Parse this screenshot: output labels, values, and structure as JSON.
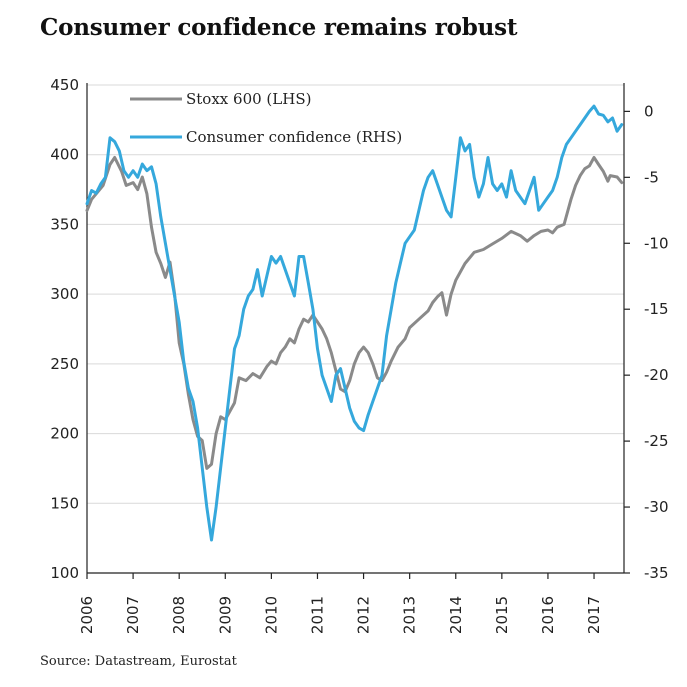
{
  "title": "Consumer confidence remains robust",
  "source": "Source:  Datastream,  Eurostat",
  "colors": {
    "stoxx": "#8a8a8a",
    "confidence": "#35a8dc",
    "grid": "#d9d9d9",
    "axis": "#222222"
  },
  "chart_data": {
    "type": "line",
    "title": "Consumer confidence remains robust",
    "x_ticks": [
      "2006",
      "2007",
      "2008",
      "2009",
      "2010",
      "2011",
      "2012",
      "2013",
      "2014",
      "2015",
      "2016",
      "2017"
    ],
    "x_range": [
      2006.0,
      2017.65
    ],
    "y_left": {
      "range": [
        100,
        450
      ],
      "ticks": [
        100,
        150,
        200,
        250,
        300,
        350,
        400,
        450
      ]
    },
    "y_right": {
      "range": [
        -35,
        2
      ],
      "ticks": [
        0,
        -5,
        -10,
        -15,
        -20,
        -25,
        -30,
        -35
      ]
    },
    "grid": true,
    "legend": "top-left",
    "series": [
      {
        "name": "Stoxx 600 (LHS)",
        "axis": "left",
        "points": [
          [
            2006.0,
            360
          ],
          [
            2006.1,
            368
          ],
          [
            2006.2,
            372
          ],
          [
            2006.35,
            378
          ],
          [
            2006.5,
            393
          ],
          [
            2006.6,
            398
          ],
          [
            2006.75,
            388
          ],
          [
            2006.85,
            378
          ],
          [
            2007.0,
            380
          ],
          [
            2007.1,
            375
          ],
          [
            2007.2,
            384
          ],
          [
            2007.3,
            372
          ],
          [
            2007.4,
            348
          ],
          [
            2007.5,
            330
          ],
          [
            2007.6,
            322
          ],
          [
            2007.7,
            312
          ],
          [
            2007.8,
            323
          ],
          [
            2007.9,
            300
          ],
          [
            2008.0,
            265
          ],
          [
            2008.1,
            250
          ],
          [
            2008.2,
            228
          ],
          [
            2008.3,
            210
          ],
          [
            2008.4,
            198
          ],
          [
            2008.5,
            195
          ],
          [
            2008.6,
            175
          ],
          [
            2008.7,
            178
          ],
          [
            2008.8,
            200
          ],
          [
            2008.9,
            212
          ],
          [
            2009.0,
            210
          ],
          [
            2009.2,
            222
          ],
          [
            2009.3,
            240
          ],
          [
            2009.45,
            238
          ],
          [
            2009.6,
            243
          ],
          [
            2009.75,
            240
          ],
          [
            2009.9,
            248
          ],
          [
            2010.0,
            252
          ],
          [
            2010.1,
            250
          ],
          [
            2010.2,
            258
          ],
          [
            2010.3,
            262
          ],
          [
            2010.4,
            268
          ],
          [
            2010.5,
            265
          ],
          [
            2010.6,
            275
          ],
          [
            2010.7,
            282
          ],
          [
            2010.8,
            280
          ],
          [
            2010.9,
            285
          ],
          [
            2011.0,
            280
          ],
          [
            2011.1,
            275
          ],
          [
            2011.2,
            268
          ],
          [
            2011.3,
            258
          ],
          [
            2011.4,
            245
          ],
          [
            2011.5,
            232
          ],
          [
            2011.6,
            230
          ],
          [
            2011.7,
            238
          ],
          [
            2011.8,
            250
          ],
          [
            2011.9,
            258
          ],
          [
            2012.0,
            262
          ],
          [
            2012.1,
            258
          ],
          [
            2012.2,
            250
          ],
          [
            2012.3,
            240
          ],
          [
            2012.4,
            238
          ],
          [
            2012.5,
            244
          ],
          [
            2012.6,
            252
          ],
          [
            2012.75,
            262
          ],
          [
            2012.9,
            268
          ],
          [
            2013.0,
            276
          ],
          [
            2013.2,
            282
          ],
          [
            2013.4,
            288
          ],
          [
            2013.5,
            294
          ],
          [
            2013.6,
            298
          ],
          [
            2013.7,
            301
          ],
          [
            2013.8,
            285
          ],
          [
            2013.9,
            300
          ],
          [
            2014.0,
            310
          ],
          [
            2014.2,
            322
          ],
          [
            2014.4,
            330
          ],
          [
            2014.6,
            332
          ],
          [
            2014.8,
            336
          ],
          [
            2015.0,
            340
          ],
          [
            2015.2,
            345
          ],
          [
            2015.4,
            342
          ],
          [
            2015.55,
            338
          ],
          [
            2015.7,
            342
          ],
          [
            2015.85,
            345
          ],
          [
            2016.0,
            346
          ],
          [
            2016.1,
            344
          ],
          [
            2016.2,
            348
          ],
          [
            2016.35,
            350
          ],
          [
            2016.5,
            368
          ],
          [
            2016.6,
            378
          ],
          [
            2016.7,
            385
          ],
          [
            2016.8,
            390
          ],
          [
            2016.9,
            392
          ],
          [
            2017.0,
            398
          ],
          [
            2017.1,
            393
          ],
          [
            2017.2,
            388
          ],
          [
            2017.3,
            381
          ],
          [
            2017.35,
            385
          ],
          [
            2017.5,
            384
          ],
          [
            2017.6,
            380
          ]
        ]
      },
      {
        "name": "Consumer confidence (RHS)",
        "axis": "right",
        "points": [
          [
            2006.0,
            -7.0
          ],
          [
            2006.1,
            -6.0
          ],
          [
            2006.2,
            -6.2
          ],
          [
            2006.3,
            -5.5
          ],
          [
            2006.4,
            -5.0
          ],
          [
            2006.5,
            -2.0
          ],
          [
            2006.6,
            -2.3
          ],
          [
            2006.7,
            -3.0
          ],
          [
            2006.8,
            -4.5
          ],
          [
            2006.9,
            -5.0
          ],
          [
            2007.0,
            -4.5
          ],
          [
            2007.1,
            -5.0
          ],
          [
            2007.2,
            -4.0
          ],
          [
            2007.3,
            -4.5
          ],
          [
            2007.4,
            -4.2
          ],
          [
            2007.5,
            -5.5
          ],
          [
            2007.6,
            -8.0
          ],
          [
            2007.7,
            -10.0
          ],
          [
            2007.8,
            -12.0
          ],
          [
            2007.9,
            -14.0
          ],
          [
            2008.0,
            -16.0
          ],
          [
            2008.1,
            -19.0
          ],
          [
            2008.2,
            -21.0
          ],
          [
            2008.3,
            -22.0
          ],
          [
            2008.4,
            -24.0
          ],
          [
            2008.5,
            -27.0
          ],
          [
            2008.6,
            -30.0
          ],
          [
            2008.7,
            -32.5
          ],
          [
            2008.8,
            -30.0
          ],
          [
            2008.9,
            -27.0
          ],
          [
            2009.0,
            -24.0
          ],
          [
            2009.1,
            -21.0
          ],
          [
            2009.2,
            -18.0
          ],
          [
            2009.3,
            -17.0
          ],
          [
            2009.4,
            -15.0
          ],
          [
            2009.5,
            -14.0
          ],
          [
            2009.6,
            -13.5
          ],
          [
            2009.7,
            -12.0
          ],
          [
            2009.8,
            -14.0
          ],
          [
            2009.9,
            -12.5
          ],
          [
            2010.0,
            -11.0
          ],
          [
            2010.1,
            -11.5
          ],
          [
            2010.2,
            -11.0
          ],
          [
            2010.3,
            -12.0
          ],
          [
            2010.4,
            -13.0
          ],
          [
            2010.5,
            -14.0
          ],
          [
            2010.6,
            -11.0
          ],
          [
            2010.7,
            -11.0
          ],
          [
            2010.8,
            -13.0
          ],
          [
            2010.9,
            -15.0
          ],
          [
            2011.0,
            -18.0
          ],
          [
            2011.1,
            -20.0
          ],
          [
            2011.2,
            -21.0
          ],
          [
            2011.3,
            -22.0
          ],
          [
            2011.4,
            -20.0
          ],
          [
            2011.5,
            -19.5
          ],
          [
            2011.6,
            -21.0
          ],
          [
            2011.7,
            -22.5
          ],
          [
            2011.8,
            -23.5
          ],
          [
            2011.9,
            -24.0
          ],
          [
            2012.0,
            -24.2
          ],
          [
            2012.1,
            -23.0
          ],
          [
            2012.2,
            -22.0
          ],
          [
            2012.3,
            -21.0
          ],
          [
            2012.4,
            -20.0
          ],
          [
            2012.5,
            -17.0
          ],
          [
            2012.6,
            -15.0
          ],
          [
            2012.7,
            -13.0
          ],
          [
            2012.8,
            -11.5
          ],
          [
            2012.9,
            -10.0
          ],
          [
            2013.0,
            -9.5
          ],
          [
            2013.1,
            -9.0
          ],
          [
            2013.2,
            -7.5
          ],
          [
            2013.3,
            -6.0
          ],
          [
            2013.4,
            -5.0
          ],
          [
            2013.5,
            -4.5
          ],
          [
            2013.6,
            -5.5
          ],
          [
            2013.7,
            -6.5
          ],
          [
            2013.8,
            -7.5
          ],
          [
            2013.9,
            -8.0
          ],
          [
            2014.0,
            -5.0
          ],
          [
            2014.1,
            -2.0
          ],
          [
            2014.2,
            -3.0
          ],
          [
            2014.3,
            -2.5
          ],
          [
            2014.4,
            -5.0
          ],
          [
            2014.5,
            -6.5
          ],
          [
            2014.6,
            -5.5
          ],
          [
            2014.7,
            -3.5
          ],
          [
            2014.8,
            -5.5
          ],
          [
            2014.9,
            -6.0
          ],
          [
            2015.0,
            -5.5
          ],
          [
            2015.1,
            -6.5
          ],
          [
            2015.2,
            -4.5
          ],
          [
            2015.3,
            -6.0
          ],
          [
            2015.4,
            -6.5
          ],
          [
            2015.5,
            -7.0
          ],
          [
            2015.6,
            -6.0
          ],
          [
            2015.7,
            -5.0
          ],
          [
            2015.8,
            -7.5
          ],
          [
            2015.9,
            -7.0
          ],
          [
            2016.0,
            -6.5
          ],
          [
            2016.1,
            -6.0
          ],
          [
            2016.2,
            -5.0
          ],
          [
            2016.3,
            -3.5
          ],
          [
            2016.4,
            -2.5
          ],
          [
            2016.5,
            -2.0
          ],
          [
            2016.6,
            -1.5
          ],
          [
            2016.7,
            -1.0
          ],
          [
            2016.8,
            -0.5
          ],
          [
            2016.9,
            0.0
          ],
          [
            2017.0,
            0.4
          ],
          [
            2017.1,
            -0.2
          ],
          [
            2017.2,
            -0.3
          ],
          [
            2017.3,
            -0.8
          ],
          [
            2017.4,
            -0.5
          ],
          [
            2017.5,
            -1.5
          ],
          [
            2017.6,
            -1.0
          ]
        ]
      }
    ]
  }
}
